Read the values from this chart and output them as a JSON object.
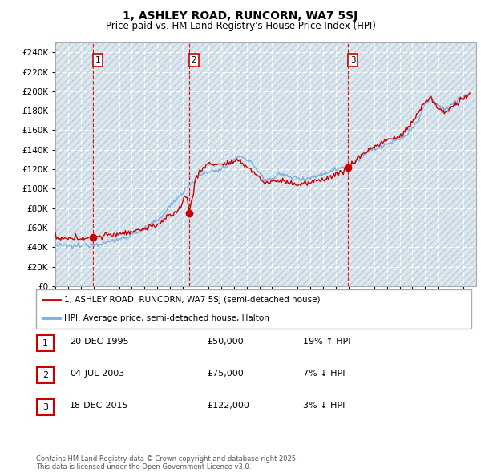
{
  "title": "1, ASHLEY ROAD, RUNCORN, WA7 5SJ",
  "subtitle": "Price paid vs. HM Land Registry's House Price Index (HPI)",
  "ytick_values": [
    0,
    20000,
    40000,
    60000,
    80000,
    100000,
    120000,
    140000,
    160000,
    180000,
    200000,
    220000,
    240000
  ],
  "ylim": [
    0,
    250000
  ],
  "xlim_start": 1993,
  "xlim_end": 2026,
  "sale_prices": [
    50000,
    75000,
    122000
  ],
  "sale_labels": [
    "1",
    "2",
    "3"
  ],
  "sale_decimal": [
    1995.96,
    2003.5,
    2015.96
  ],
  "legend_entries": [
    "1, ASHLEY ROAD, RUNCORN, WA7 5SJ (semi-detached house)",
    "HPI: Average price, semi-detached house, Halton"
  ],
  "table_rows": [
    {
      "label": "1",
      "date": "20-DEC-1995",
      "price": "£50,000",
      "change": "19% ↑ HPI"
    },
    {
      "label": "2",
      "date": "04-JUL-2003",
      "price": "£75,000",
      "change": "7% ↓ HPI"
    },
    {
      "label": "3",
      "date": "18-DEC-2015",
      "price": "£122,000",
      "change": "3% ↓ HPI"
    }
  ],
  "footer": "Contains HM Land Registry data © Crown copyright and database right 2025.\nThis data is licensed under the Open Government Licence v3.0.",
  "hpi_color": "#7aadde",
  "sale_line_color": "#cc0000",
  "sale_point_color": "#cc0000",
  "vline_color": "#cc0000",
  "grid_color": "#c8d8e8",
  "bg_color": "#dce8f0",
  "hatch_color": "#c0ccd8"
}
